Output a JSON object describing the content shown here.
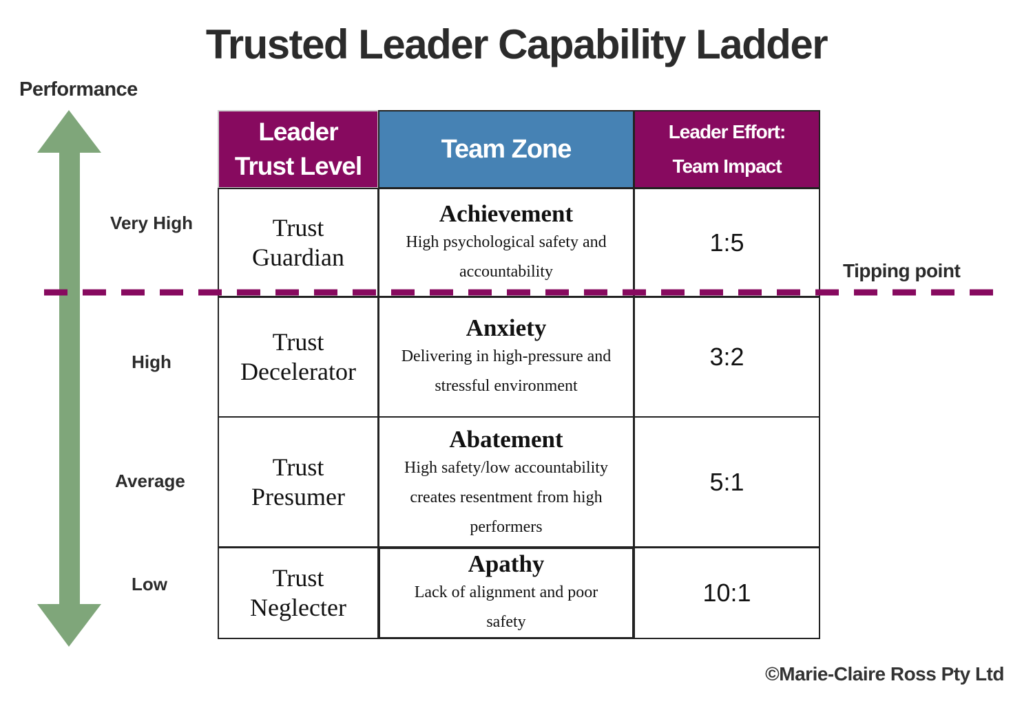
{
  "title": "Trusted Leader Capability Ladder",
  "axis_label": "Performance",
  "levels": [
    "Very High",
    "High",
    "Average",
    "Low"
  ],
  "headers": {
    "trust_level": "Leader Trust Level",
    "team_zone": "Team Zone",
    "effort": "Leader Effort: Team Impact"
  },
  "rows": [
    {
      "trust": "Trust Guardian",
      "zone": "Achievement",
      "desc": "High psychological safety and accountability",
      "ratio": "1:5"
    },
    {
      "trust": "Trust Decelerator",
      "zone": "Anxiety",
      "desc": "Delivering in high-pressure and stressful environment",
      "ratio": "3:2"
    },
    {
      "trust": "Trust Presumer",
      "zone": "Abatement",
      "desc": "High safety/low accountability creates resentment from high performers",
      "ratio": "5:1"
    },
    {
      "trust": "Trust Neglecter",
      "zone": "Apathy",
      "desc": "Lack of alignment and poor safety",
      "ratio": "10:1"
    }
  ],
  "tipping_point": "Tipping point",
  "copyright": "©Marie-Claire Ross Pty Ltd",
  "colors": {
    "purple": "#870a5f",
    "blue": "#4682b4",
    "green": "#7fa67a"
  }
}
